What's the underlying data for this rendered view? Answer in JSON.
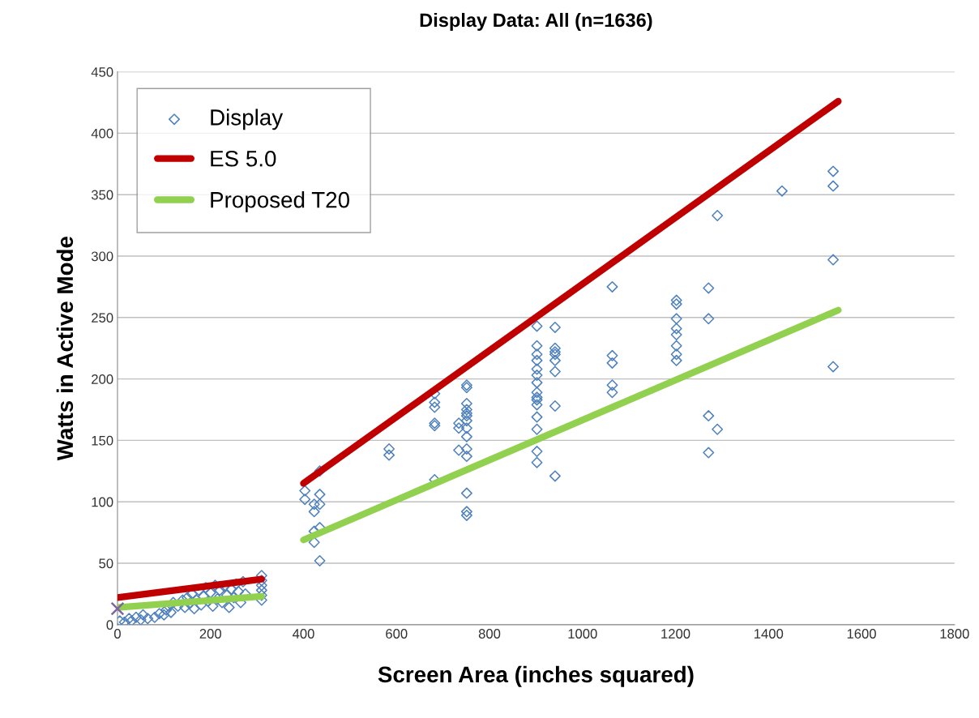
{
  "chart_data": {
    "type": "scatter",
    "title": "Display Data: All (n=1636)",
    "xlabel": "Screen Area (inches squared)",
    "ylabel": "Watts in Active Mode",
    "xlim": [
      0,
      1800
    ],
    "xticks": [
      0,
      200,
      400,
      600,
      800,
      1000,
      1200,
      1400,
      1600,
      1800
    ],
    "ylim": [
      0,
      450
    ],
    "yticks": [
      0,
      50,
      100,
      150,
      200,
      250,
      300,
      350,
      400,
      450
    ],
    "grid": "y",
    "legend": "top left",
    "series": [
      {
        "name": "Display",
        "marker": "diamond",
        "color": "#4f81bd",
        "x": [
          5,
          15,
          25,
          30,
          40,
          50,
          55,
          65,
          80,
          90,
          100,
          105,
          110,
          115,
          120,
          130,
          140,
          145,
          150,
          155,
          160,
          165,
          170,
          175,
          180,
          185,
          190,
          195,
          200,
          205,
          210,
          215,
          220,
          225,
          230,
          235,
          240,
          245,
          250,
          255,
          260,
          265,
          270,
          275,
          310,
          310,
          310,
          310,
          310,
          310,
          403,
          403,
          423,
          423,
          423,
          423,
          435,
          435,
          435,
          435,
          435,
          584,
          584,
          682,
          682,
          682,
          682,
          682,
          682,
          734,
          734,
          734,
          751,
          751,
          751,
          751,
          751,
          751,
          751,
          751,
          751,
          751,
          751,
          751,
          751,
          751,
          902,
          902,
          902,
          902,
          902,
          902,
          902,
          902,
          902,
          902,
          902,
          902,
          902,
          902,
          902,
          941,
          941,
          941,
          941,
          941,
          941,
          941,
          941,
          1064,
          1064,
          1064,
          1064,
          1064,
          1202,
          1202,
          1202,
          1202,
          1202,
          1202,
          1202,
          1202,
          1271,
          1271,
          1271,
          1271,
          1290,
          1290,
          1429,
          1539,
          1539,
          1539,
          1539
        ],
        "values": [
          3,
          2,
          5,
          3,
          6,
          4,
          8,
          5,
          6,
          9,
          8,
          12,
          15,
          10,
          18,
          15,
          20,
          14,
          22,
          17,
          25,
          13,
          20,
          28,
          16,
          23,
          30,
          19,
          26,
          15,
          32,
          21,
          28,
          18,
          31,
          24,
          14,
          29,
          22,
          33,
          27,
          18,
          35,
          25,
          20,
          24,
          28,
          32,
          36,
          40,
          109,
          102,
          98,
          92,
          76,
          67,
          125,
          106,
          98,
          79,
          52,
          143,
          138,
          188,
          181,
          177,
          164,
          162,
          118,
          164,
          160,
          142,
          195,
          193,
          180,
          175,
          172,
          170,
          166,
          160,
          153,
          143,
          137,
          107,
          92,
          89,
          243,
          227,
          220,
          215,
          208,
          203,
          197,
          189,
          185,
          183,
          179,
          169,
          159,
          141,
          132,
          242,
          225,
          222,
          220,
          215,
          206,
          178,
          121,
          275,
          219,
          213,
          195,
          189,
          264,
          261,
          249,
          241,
          236,
          227,
          220,
          215,
          274,
          249,
          170,
          140,
          333,
          159,
          353,
          369,
          357,
          297,
          210
        ]
      },
      {
        "marker": "cross",
        "color": "#8064a2",
        "x": [
          0
        ],
        "values": [
          13
        ]
      },
      {
        "name": "ES 5.0",
        "type": "line",
        "color": "#c00000",
        "x": [
          0,
          310,
          355,
          400,
          1550
        ],
        "values": [
          22,
          37,
          null,
          115,
          426
        ]
      },
      {
        "name": "Proposed T20",
        "type": "line",
        "color": "#92d050",
        "x": [
          0,
          310,
          355,
          400,
          1550
        ],
        "values": [
          14,
          23,
          null,
          69,
          256
        ]
      }
    ]
  }
}
